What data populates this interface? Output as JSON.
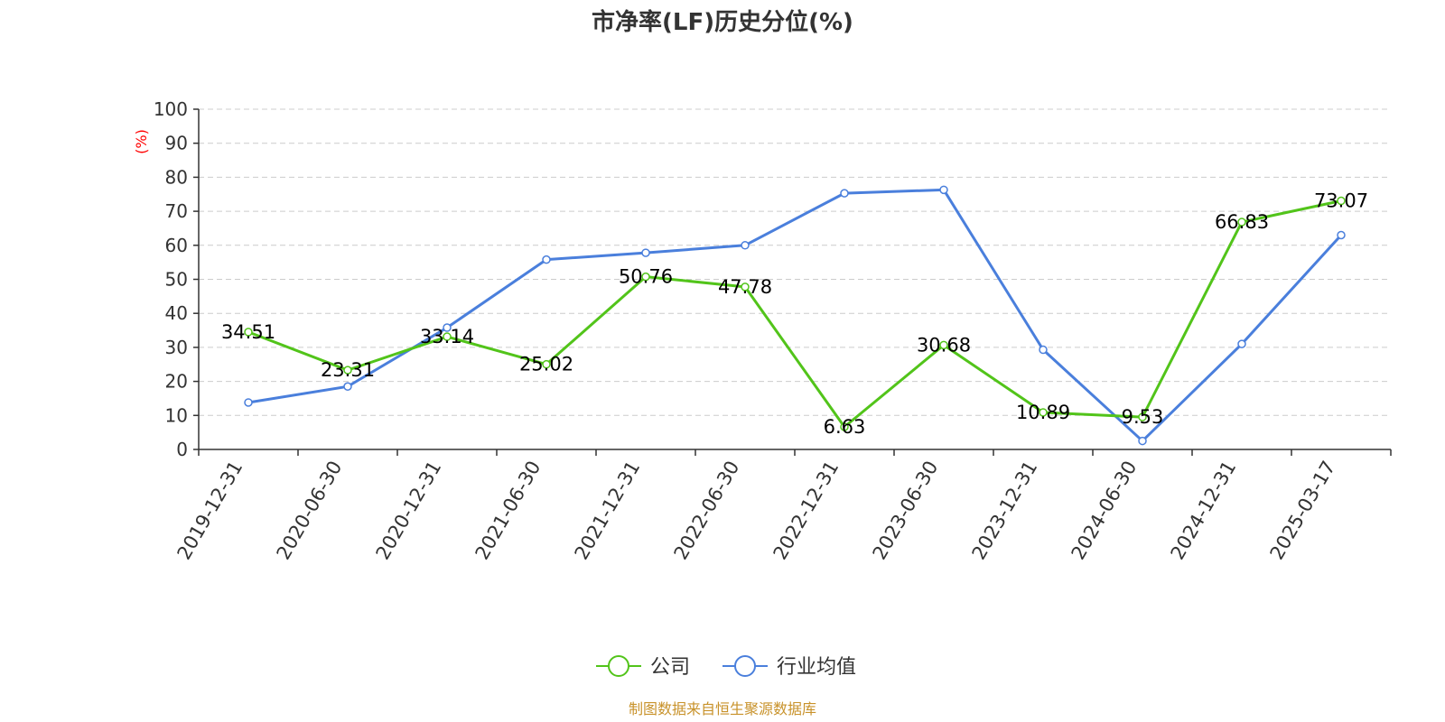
{
  "chart_data": {
    "type": "line",
    "title": "市净率(LF)历史分位(%)",
    "ylabel": "(%)",
    "xlabel": "",
    "ylim": [
      0,
      100
    ],
    "yticks": [
      0,
      10,
      20,
      30,
      40,
      50,
      60,
      70,
      80,
      90,
      100
    ],
    "grid": true,
    "legend_position": "bottom",
    "categories": [
      "2019-12-31",
      "2020-06-30",
      "2020-12-31",
      "2021-06-30",
      "2021-12-31",
      "2022-06-30",
      "2022-12-31",
      "2023-06-30",
      "2023-12-31",
      "2024-06-30",
      "2024-12-31",
      "2025-03-17"
    ],
    "series": [
      {
        "name": "公司",
        "color": "#52c41a",
        "values": [
          34.51,
          23.31,
          33.14,
          25.02,
          50.76,
          47.78,
          6.63,
          30.68,
          10.89,
          9.53,
          66.83,
          73.07
        ],
        "labels": [
          "34.51",
          "23.31",
          "33.14",
          "25.02",
          "50.76",
          "47.78",
          "6.63",
          "30.68",
          "10.89",
          "9.53",
          "66.83",
          "73.07"
        ]
      },
      {
        "name": "行业均值",
        "color": "#4a7fdc",
        "values": [
          13.8,
          18.5,
          35.8,
          55.8,
          57.8,
          60.0,
          75.3,
          76.3,
          29.3,
          2.5,
          31.0,
          63.0
        ]
      }
    ],
    "source": "制图数据来自恒生聚源数据库",
    "source_color": "#c8922a"
  }
}
